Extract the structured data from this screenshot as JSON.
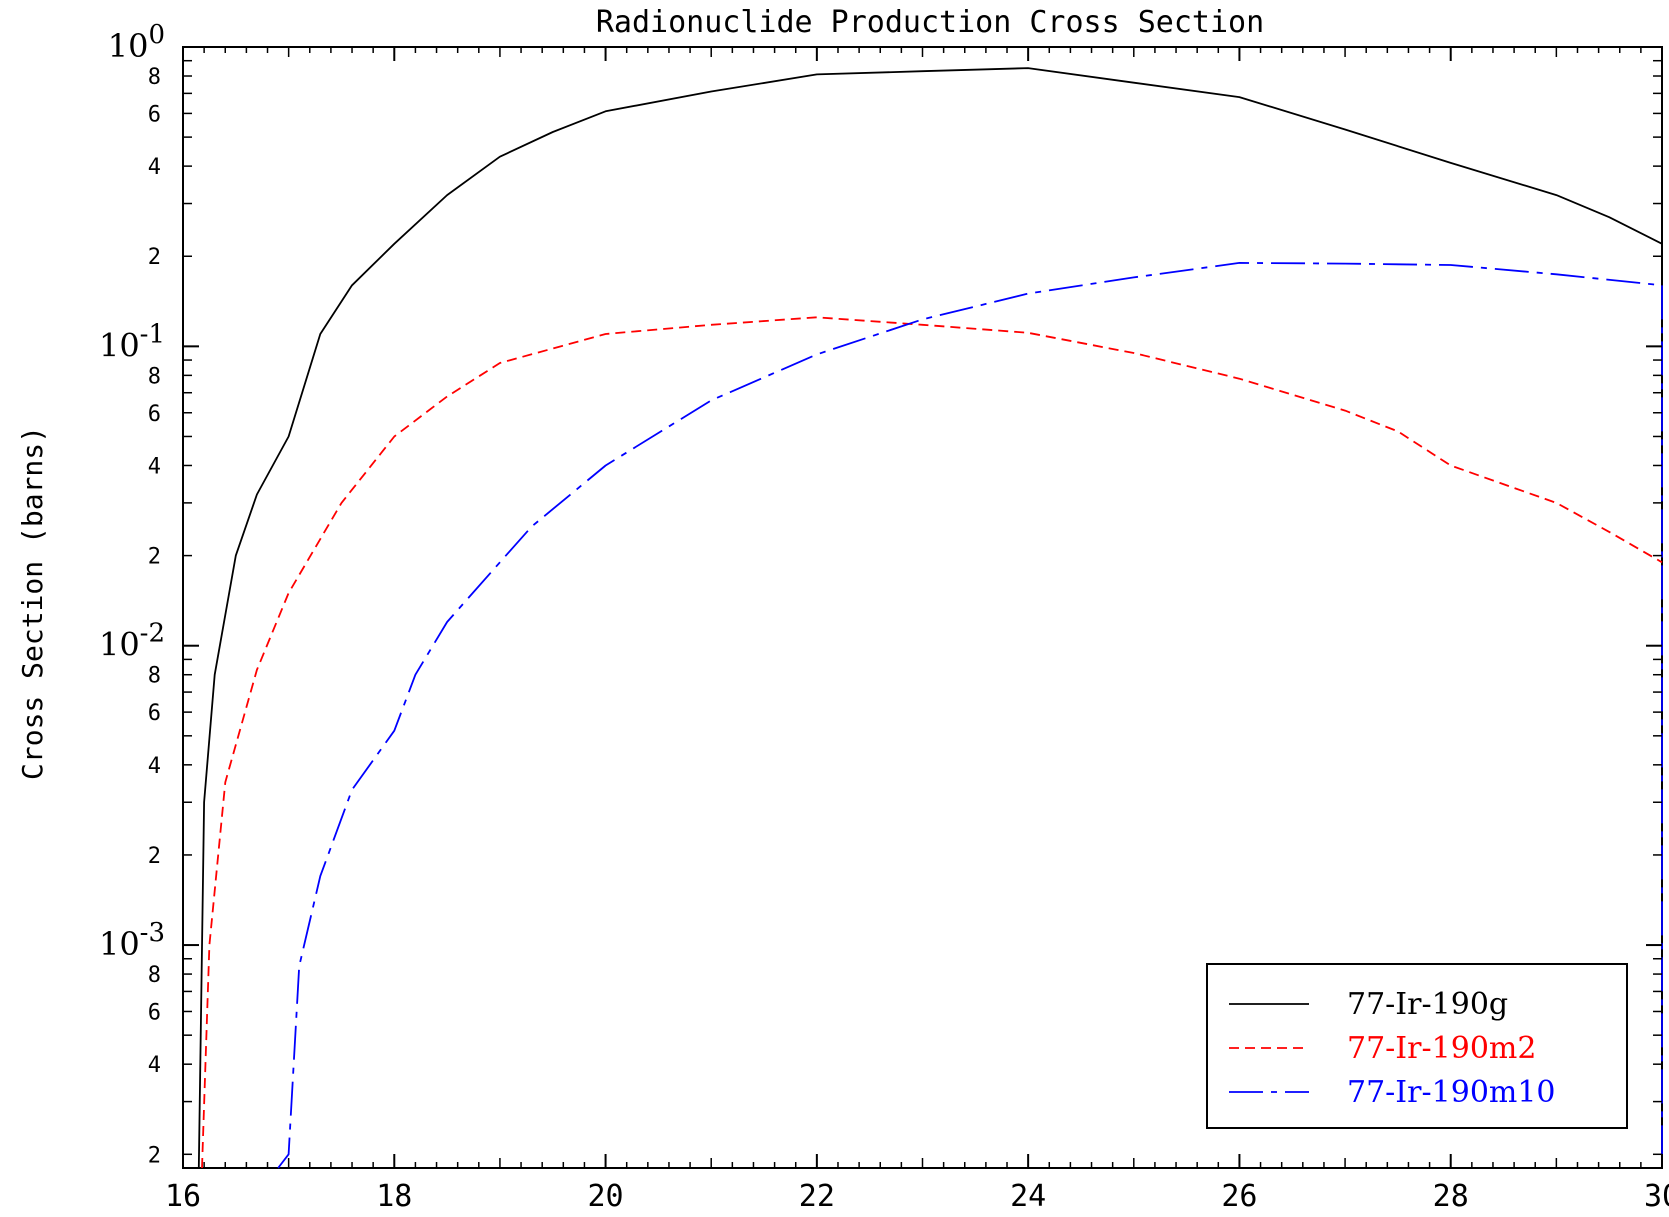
{
  "chart_data": {
    "type": "line",
    "title": "Radionuclide Production Cross Section",
    "xlabel": "",
    "ylabel": "Cross Section (barns)",
    "xlim": [
      16,
      30
    ],
    "ylim": [
      0.00018,
      1.0
    ],
    "yscale": "log",
    "x_ticks": [
      16,
      18,
      20,
      22,
      24,
      26,
      28,
      30
    ],
    "y_decade_labels": [
      {
        "value": 1.0,
        "base": "10",
        "exp": "0"
      },
      {
        "value": 0.1,
        "base": "10",
        "exp": "-1"
      },
      {
        "value": 0.01,
        "base": "10",
        "exp": "-2"
      },
      {
        "value": 0.001,
        "base": "10",
        "exp": "-3"
      }
    ],
    "y_minor_labels": [
      "8",
      "6",
      "4",
      "2"
    ],
    "grid": false,
    "legend_position": "bottom-right",
    "series": [
      {
        "name": "77-Ir-190g",
        "color": "#000000",
        "dash": "solid",
        "points": [
          [
            16.15,
            0.00018
          ],
          [
            16.2,
            0.003
          ],
          [
            16.3,
            0.008
          ],
          [
            16.5,
            0.02
          ],
          [
            16.7,
            0.032
          ],
          [
            17.0,
            0.05
          ],
          [
            17.3,
            0.11
          ],
          [
            17.6,
            0.16
          ],
          [
            18.0,
            0.22
          ],
          [
            18.5,
            0.32
          ],
          [
            19.0,
            0.43
          ],
          [
            19.5,
            0.52
          ],
          [
            20.0,
            0.61
          ],
          [
            21.0,
            0.71
          ],
          [
            22.0,
            0.81
          ],
          [
            23.0,
            0.83
          ],
          [
            24.0,
            0.85
          ],
          [
            25.0,
            0.76
          ],
          [
            26.0,
            0.68
          ],
          [
            27.0,
            0.53
          ],
          [
            28.0,
            0.41
          ],
          [
            29.0,
            0.32
          ],
          [
            29.5,
            0.27
          ],
          [
            30.0,
            0.22
          ],
          [
            30.0,
            0.00018
          ]
        ]
      },
      {
        "name": "77-Ir-190m2",
        "color": "#ff0000",
        "dash": "dashed",
        "points": [
          [
            16.18,
            0.00018
          ],
          [
            16.25,
            0.001
          ],
          [
            16.4,
            0.0035
          ],
          [
            16.7,
            0.0083
          ],
          [
            17.0,
            0.015
          ],
          [
            17.5,
            0.03
          ],
          [
            18.0,
            0.05
          ],
          [
            18.5,
            0.068
          ],
          [
            19.0,
            0.088
          ],
          [
            20.0,
            0.11
          ],
          [
            21.0,
            0.118
          ],
          [
            22.0,
            0.125
          ],
          [
            23.0,
            0.118
          ],
          [
            24.0,
            0.111
          ],
          [
            25.0,
            0.095
          ],
          [
            26.0,
            0.078
          ],
          [
            27.0,
            0.061
          ],
          [
            27.5,
            0.052
          ],
          [
            28.0,
            0.04
          ],
          [
            29.0,
            0.03
          ],
          [
            29.5,
            0.024
          ],
          [
            30.0,
            0.019
          ]
        ]
      },
      {
        "name": "77-Ir-190m10",
        "color": "#0000ff",
        "dash": "dashdot",
        "points": [
          [
            16.9,
            0.00018
          ],
          [
            17.0,
            0.0002
          ],
          [
            17.1,
            0.00085
          ],
          [
            17.3,
            0.0017
          ],
          [
            17.6,
            0.0033
          ],
          [
            18.0,
            0.0052
          ],
          [
            18.2,
            0.008
          ],
          [
            18.5,
            0.012
          ],
          [
            19.0,
            0.019
          ],
          [
            19.3,
            0.025
          ],
          [
            20.0,
            0.04
          ],
          [
            21.0,
            0.066
          ],
          [
            22.0,
            0.094
          ],
          [
            23.0,
            0.123
          ],
          [
            24.0,
            0.15
          ],
          [
            25.0,
            0.17
          ],
          [
            26.0,
            0.19
          ],
          [
            27.0,
            0.189
          ],
          [
            28.0,
            0.187
          ],
          [
            29.0,
            0.174
          ],
          [
            30.0,
            0.16
          ],
          [
            30.0,
            0.00018
          ]
        ]
      }
    ]
  }
}
